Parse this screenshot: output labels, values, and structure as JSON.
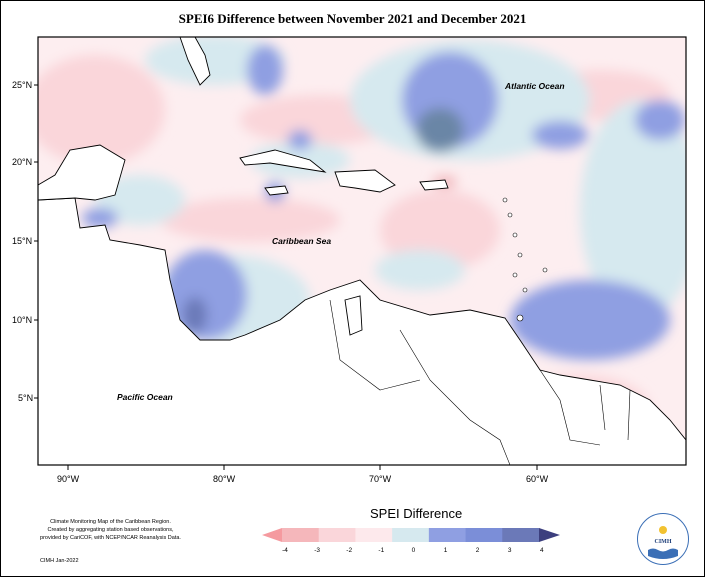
{
  "title": "SPEI6 Difference between November 2021 and December 2021",
  "map": {
    "lat_labels": [
      "25°N",
      "20°N",
      "15°N",
      "10°N",
      "5°N"
    ],
    "lon_labels": [
      "90°W",
      "80°W",
      "70°W",
      "60°W"
    ],
    "region_labels": {
      "atlantic": "Atlantic Ocean",
      "caribbean": "Caribbean Sea",
      "pacific": "Pacific Ocean"
    }
  },
  "legend": {
    "title": "SPEI Difference",
    "tick_labels": [
      "-4",
      "-3",
      "-2",
      "-1",
      "0",
      "1",
      "2",
      "3",
      "4"
    ],
    "colors": [
      "#f59a9f",
      "#f5b7bb",
      "#fad6da",
      "#fde9ec",
      "#d6e9ef",
      "#8f9fe2",
      "#7b8ed8",
      "#6b79b8",
      "#3c3f7e"
    ]
  },
  "colors": {
    "dry_light": "#fde9ec",
    "dry_mid": "#fad6da",
    "wet_light": "#d6e9ef",
    "wet_mid": "#8f9fe2",
    "wet_dark": "#6b86a6"
  },
  "credits": {
    "line1": "Climate Monitoring Map of the Caribbean Region.",
    "line2": "Created by aggregating station based observations,",
    "line3": "provided by CariCOF, with NCEP/NCAR Reanalysis Data.",
    "stamp": "CIMH Jan-2022"
  },
  "logo": {
    "text": "CIMH"
  }
}
